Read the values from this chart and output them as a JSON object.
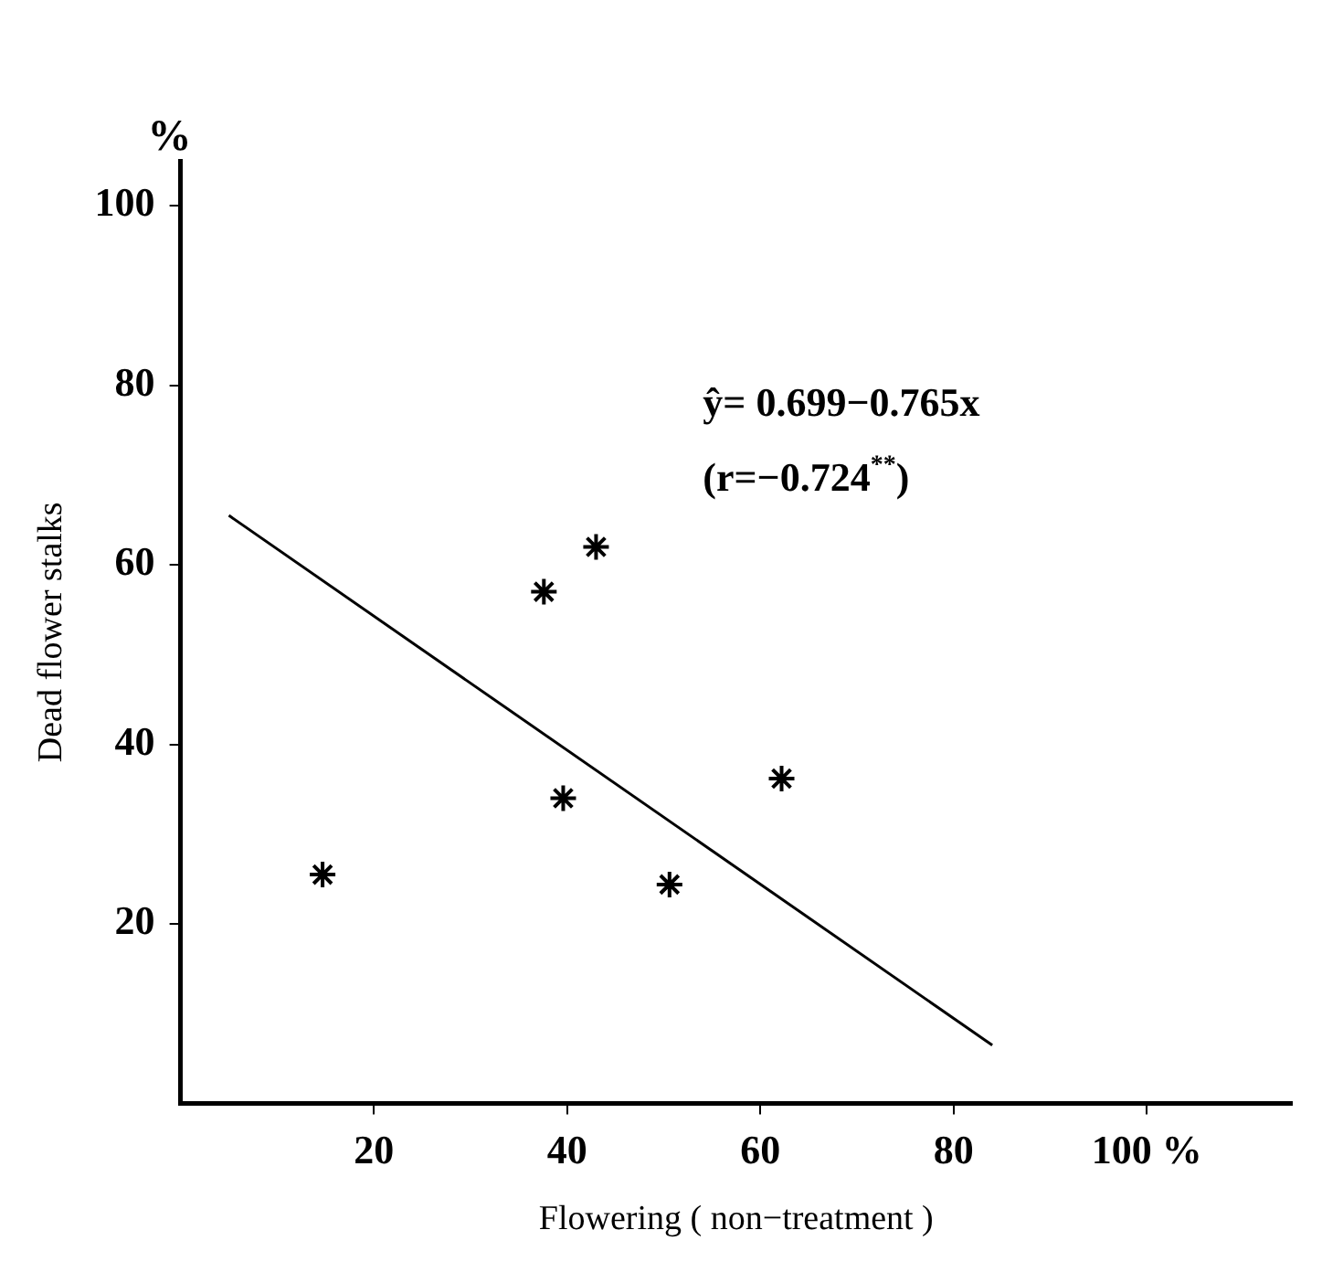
{
  "chart_data": {
    "type": "scatter",
    "xlabel": "Flowering ( non−treatment )",
    "ylabel": "Dead flower stalks",
    "xlim": [
      0,
      115
    ],
    "xticks": [
      20,
      40,
      60,
      80,
      {
        "value": 100,
        "label": "100 %"
      }
    ],
    "ylim": [
      0,
      105
    ],
    "yticks": [
      20,
      40,
      60,
      80,
      100
    ],
    "grid": false,
    "legend": false,
    "annotations": [
      "%",
      "ŷ= 0.699−0.765x",
      "(r=−0.724$^{**}$)"
    ],
    "series": [
      {
        "type": "scatter",
        "marker": "cross",
        "color": "#000000",
        "x": [
          14.7,
          37.6,
          43,
          39.6,
          50.6,
          62.2
        ],
        "values": [
          25.5,
          57,
          62,
          34,
          24.4,
          36.2
        ]
      },
      {
        "type": "line",
        "marker": "none",
        "line_style": "solid",
        "color": "#000000",
        "x": [
          5,
          84
        ],
        "values": [
          65.5,
          6.5
        ]
      }
    ]
  }
}
